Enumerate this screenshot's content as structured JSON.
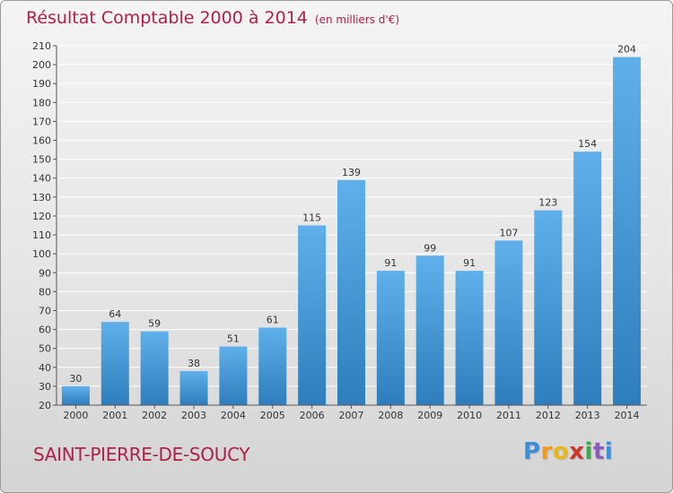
{
  "header": {
    "title": "Résultat Comptable 2000 à 2014",
    "unit": "(en milliers d'€)"
  },
  "footer": {
    "commune": "SAINT-PIERRE-DE-SOUCY",
    "logo_letters": [
      "P",
      "r",
      "o",
      "x",
      "i",
      "t",
      "i"
    ]
  },
  "colors": {
    "title": "#b0204a",
    "bar_top": "#5fb0ea",
    "bar_bottom": "#2e7dbd",
    "gridline": "#ffffff",
    "logo": [
      "#3a8fd6",
      "#f39a1e",
      "#e8b818",
      "#d0352b",
      "#3aa84b",
      "#8a5bb8",
      "#3a8fd6"
    ]
  },
  "chart_data": {
    "type": "bar",
    "categories": [
      "2000",
      "2001",
      "2002",
      "2003",
      "2004",
      "2005",
      "2006",
      "2007",
      "2008",
      "2009",
      "2010",
      "2011",
      "2012",
      "2013",
      "2014"
    ],
    "values": [
      30,
      64,
      59,
      38,
      51,
      61,
      115,
      139,
      91,
      99,
      91,
      107,
      123,
      154,
      204
    ],
    "ylim": [
      20,
      210
    ],
    "yticks": [
      20,
      30,
      40,
      50,
      60,
      70,
      80,
      90,
      100,
      110,
      120,
      130,
      140,
      150,
      160,
      170,
      180,
      190,
      200,
      210
    ],
    "grid": true,
    "data_labels": true
  }
}
